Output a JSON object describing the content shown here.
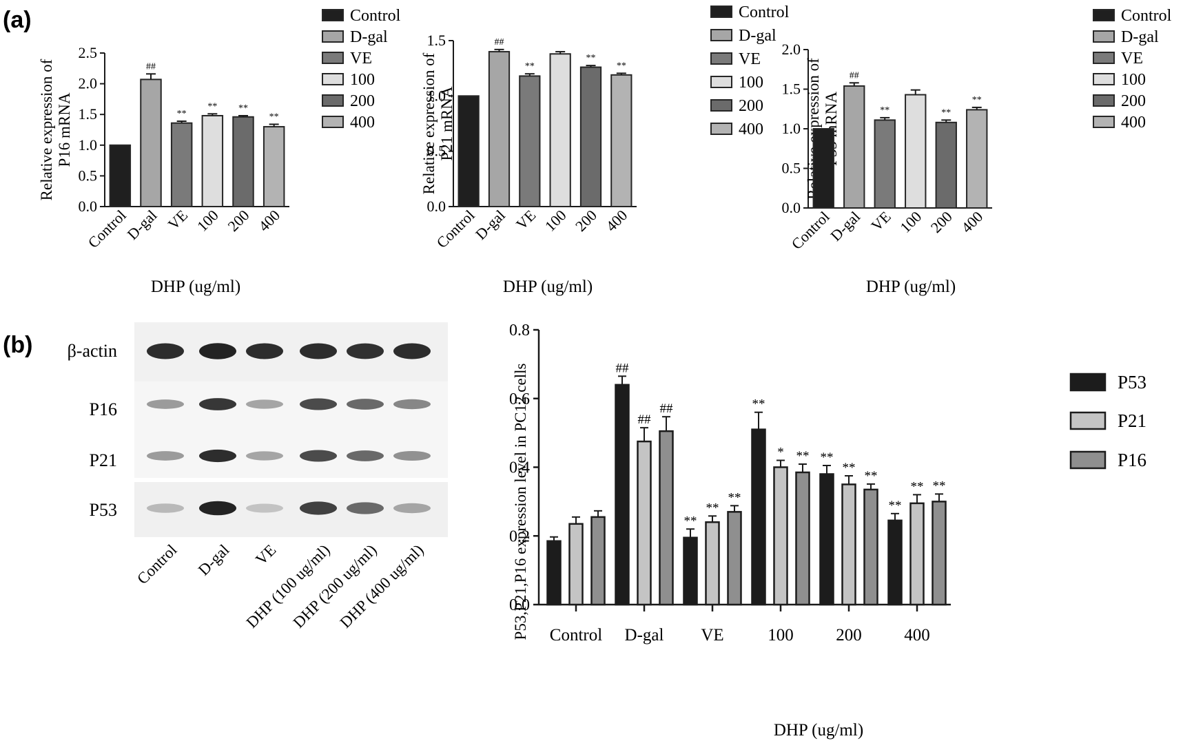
{
  "panels": {
    "a_label": "(a)",
    "b_label": "(b)"
  },
  "colors": {
    "control": "#1f1f1f",
    "dgal": "#a6a6a6",
    "ve": "#7a7a7a",
    "d100": "#dedede",
    "d200": "#6b6b6b",
    "d400": "#b3b3b3",
    "p53": "#1c1c1c",
    "p21": "#c4c4c4",
    "p16": "#8f8f8f",
    "axis": "#1a1a1a"
  },
  "western_blot": {
    "row_labels": [
      "β-actin",
      "P16",
      "P21",
      "P53"
    ],
    "lane_labels": [
      "Control",
      "D-gal",
      "VE",
      "DHP (100 ug/ml)",
      "DHP (200 ug/ml)",
      "DHP (400 ug/ml)"
    ],
    "band_intensity": [
      [
        0.9,
        0.95,
        0.9,
        0.9,
        0.88,
        0.9
      ],
      [
        0.35,
        0.85,
        0.3,
        0.75,
        0.6,
        0.45
      ],
      [
        0.35,
        0.9,
        0.3,
        0.75,
        0.6,
        0.4
      ],
      [
        0.2,
        0.95,
        0.15,
        0.8,
        0.6,
        0.3
      ]
    ]
  },
  "chart_data": [
    {
      "type": "bar",
      "panel": "a",
      "title": "",
      "ylabel": "Relative expression of P16 mRNA",
      "xlabel": "DHP (ug/ml)",
      "categories": [
        "Control",
        "D-gal",
        "VE",
        "100",
        "200",
        "400"
      ],
      "values": [
        1.0,
        2.07,
        1.36,
        1.48,
        1.46,
        1.3
      ],
      "errors": [
        0,
        0.09,
        0.03,
        0.03,
        0.02,
        0.04
      ],
      "annotations": [
        "",
        "##",
        "**",
        "**",
        "**",
        "**"
      ],
      "ylim": [
        0,
        2.5
      ],
      "yticks": [
        "0.0",
        "0.5",
        "1.0",
        "1.5",
        "2.0",
        "2.5"
      ],
      "yticks_values": [
        0,
        0.5,
        1.0,
        1.5,
        2.0,
        2.5
      ],
      "legend": [
        "Control",
        "D-gal",
        "VE",
        "100",
        "200",
        "400"
      ],
      "legend_position": "top-right",
      "grid": false
    },
    {
      "type": "bar",
      "panel": "a",
      "title": "",
      "ylabel": "Relative expression of P21 mRNA",
      "xlabel": "DHP (ug/ml)",
      "categories": [
        "Control",
        "D-gal",
        "VE",
        "100",
        "200",
        "400"
      ],
      "values": [
        1.0,
        1.4,
        1.18,
        1.38,
        1.26,
        1.19
      ],
      "errors": [
        0,
        0.02,
        0.02,
        0.02,
        0.015,
        0.015
      ],
      "annotations": [
        "",
        "##",
        "**",
        "",
        "**",
        "**"
      ],
      "ylim": [
        0,
        1.5
      ],
      "yticks": [
        "0.0",
        "0.5",
        "1.0",
        "1.5"
      ],
      "yticks_values": [
        0,
        0.5,
        1.0,
        1.5
      ],
      "legend": [
        "Control",
        "D-gal",
        "VE",
        "100",
        "200",
        "400"
      ],
      "legend_position": "top-right",
      "grid": false
    },
    {
      "type": "bar",
      "panel": "a",
      "title": "",
      "ylabel": "Relative expression of P53 mRNA",
      "xlabel": "DHP (ug/ml)",
      "categories": [
        "Control",
        "D-gal",
        "VE",
        "100",
        "200",
        "400"
      ],
      "values": [
        1.0,
        1.54,
        1.11,
        1.43,
        1.08,
        1.24
      ],
      "errors": [
        0,
        0.04,
        0.03,
        0.06,
        0.03,
        0.03
      ],
      "annotations": [
        "",
        "##",
        "**",
        "",
        "**",
        "**"
      ],
      "ylim": [
        0,
        2.0
      ],
      "yticks": [
        "0.0",
        "0.5",
        "1.0",
        "1.5",
        "2.0"
      ],
      "yticks_values": [
        0,
        0.5,
        1.0,
        1.5,
        2.0
      ],
      "legend": [
        "Control",
        "D-gal",
        "VE",
        "100",
        "200",
        "400"
      ],
      "legend_position": "top-right",
      "grid": false
    },
    {
      "type": "bar",
      "panel": "b",
      "title": "",
      "ylabel": "P53,P21,P16 expression level in PC12 cells",
      "xlabel": "DHP (ug/ml)",
      "categories": [
        "Control",
        "D-gal",
        "VE",
        "100",
        "200",
        "400"
      ],
      "series": [
        {
          "name": "P53",
          "values": [
            0.185,
            0.64,
            0.195,
            0.51,
            0.38,
            0.245
          ],
          "errors": [
            0.012,
            0.025,
            0.025,
            0.05,
            0.025,
            0.02
          ],
          "annotations": [
            "",
            "##",
            "**",
            "**",
            "**",
            "**"
          ]
        },
        {
          "name": "P21",
          "values": [
            0.235,
            0.475,
            0.24,
            0.4,
            0.35,
            0.295
          ],
          "errors": [
            0.02,
            0.04,
            0.018,
            0.02,
            0.025,
            0.025
          ],
          "annotations": [
            "",
            "##",
            "**",
            "*",
            "**",
            "**"
          ]
        },
        {
          "name": "P16",
          "values": [
            0.255,
            0.505,
            0.27,
            0.385,
            0.335,
            0.3
          ],
          "errors": [
            0.018,
            0.042,
            0.018,
            0.024,
            0.016,
            0.022
          ],
          "annotations": [
            "",
            "##",
            "**",
            "**",
            "**",
            "**"
          ]
        }
      ],
      "ylim": [
        0,
        0.8
      ],
      "yticks": [
        "0.0",
        "0.2",
        "0.4",
        "0.6",
        "0.8"
      ],
      "yticks_values": [
        0,
        0.2,
        0.4,
        0.6,
        0.8
      ],
      "legend_position": "right",
      "grid": false
    }
  ]
}
